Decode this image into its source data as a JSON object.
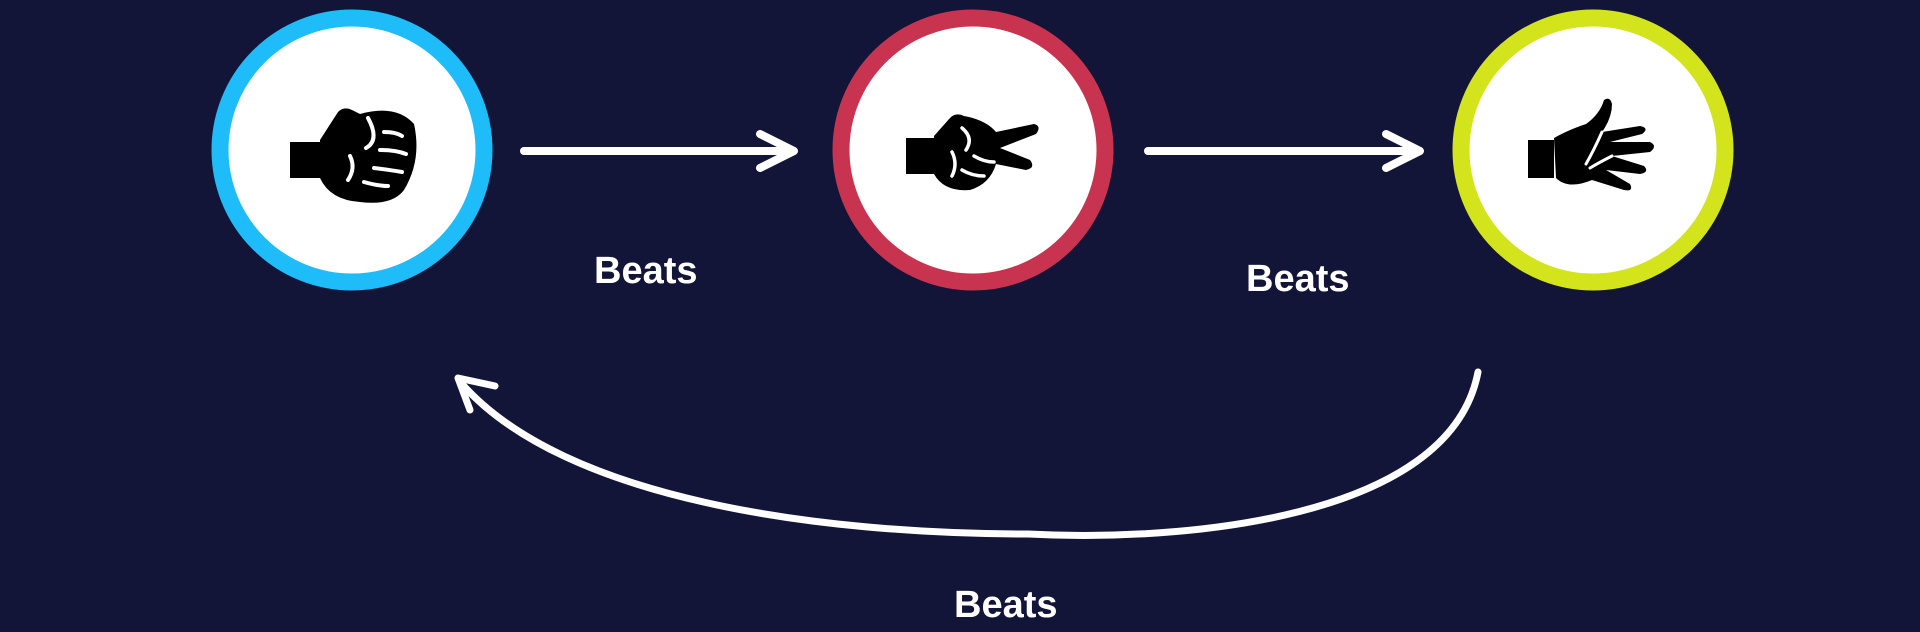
{
  "colors": {
    "background": "#131538",
    "rock_ring": "#1ebcf8",
    "scissors_ring": "#c8344f",
    "paper_ring": "#d3e31c",
    "arrow": "#ffffff",
    "icon": "#000000"
  },
  "nodes": [
    {
      "icon": "rock-fist-icon"
    },
    {
      "icon": "scissors-hand-icon"
    },
    {
      "icon": "paper-open-hand-icon"
    }
  ],
  "edges": [
    {
      "from": "rock",
      "to": "scissors",
      "label": "Beats"
    },
    {
      "from": "scissors",
      "to": "paper",
      "label": "Beats"
    },
    {
      "from": "paper",
      "to": "rock",
      "label": "Beats"
    }
  ]
}
